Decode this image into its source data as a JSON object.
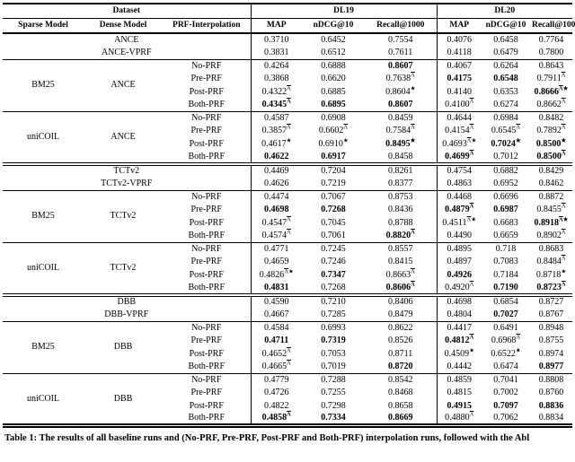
{
  "page": {
    "background": "#ffffff",
    "text_color": "#000000"
  },
  "table": {
    "markers": {
      "lambda": "Λ",
      "star": "★"
    },
    "header": {
      "group_row": [
        {
          "label": "Dataset",
          "span": 3
        },
        {
          "label": "DL19",
          "span": 3
        },
        {
          "label": "DL20",
          "span": 3
        }
      ],
      "columns": [
        "Sparse Model",
        "Dense Model",
        "PRF-Interpolation",
        "MAP",
        "nDCG@10",
        "Recall@1000",
        "MAP",
        "nDCG@10",
        "Recall@1000"
      ]
    },
    "sections": [
      {
        "baselines": [
          {
            "label": "ANCE",
            "cells": [
              "0.3710",
              "0.6452",
              "0.7554",
              "0.4076",
              "0.6458",
              "0.7764"
            ]
          },
          {
            "label": "ANCE-VPRF",
            "cells": [
              "0.3831",
              "0.6512",
              "0.7611",
              "0.4118",
              "0.6479",
              "0.7800"
            ]
          }
        ],
        "blocks": [
          {
            "sparse": "BM25",
            "dense": "ANCE",
            "rows": [
              {
                "prf": "No-PRF",
                "cells": [
                  "0.4264",
                  "0.6888",
                  {
                    "v": "0.8607",
                    "b": 1
                  },
                  "0.4067",
                  "0.6264",
                  "0.8643"
                ]
              },
              {
                "prf": "Pre-PRF",
                "cells": [
                  "0.3868",
                  "0.6620",
                  {
                    "v": "0.7638",
                    "m": "L"
                  },
                  {
                    "v": "0.4175",
                    "b": 1
                  },
                  {
                    "v": "0.6548",
                    "b": 1
                  },
                  {
                    "v": "0.7911",
                    "m": "L"
                  }
                ]
              },
              {
                "prf": "Post-PRF",
                "cells": [
                  {
                    "v": "0.4322",
                    "m": "L"
                  },
                  "0.6885",
                  {
                    "v": "0.8604",
                    "m": "S"
                  },
                  "0.4140",
                  "0.6353",
                  {
                    "v": "0.8666",
                    "m": "LS",
                    "b": 1
                  }
                ]
              },
              {
                "prf": "Both-PRF",
                "cells": [
                  {
                    "v": "0.4345",
                    "m": "L",
                    "b": 1
                  },
                  {
                    "v": "0.6895",
                    "b": 1
                  },
                  {
                    "v": "0.8607",
                    "b": 1
                  },
                  {
                    "v": "0.4100",
                    "m": "L"
                  },
                  "0.6274",
                  {
                    "v": "0.8662",
                    "m": "L"
                  }
                ]
              }
            ]
          },
          {
            "sparse": "uniCOIL",
            "dense": "ANCE",
            "rows": [
              {
                "prf": "No-PRF",
                "cells": [
                  "0.4587",
                  "0.6908",
                  "0.8459",
                  "0.4644",
                  "0.6984",
                  "0.8482"
                ]
              },
              {
                "prf": "Pre-PRF",
                "cells": [
                  {
                    "v": "0.3857",
                    "m": "L"
                  },
                  {
                    "v": "0.6602",
                    "m": "L"
                  },
                  {
                    "v": "0.7584",
                    "m": "L"
                  },
                  {
                    "v": "0.4154",
                    "m": "L"
                  },
                  {
                    "v": "0.6545",
                    "m": "L"
                  },
                  {
                    "v": "0.7892",
                    "m": "L"
                  }
                ]
              },
              {
                "prf": "Post-PRF",
                "cells": [
                  {
                    "v": "0.4617",
                    "m": "S"
                  },
                  {
                    "v": "0.6910",
                    "m": "S"
                  },
                  {
                    "v": "0.8495",
                    "m": "S",
                    "b": 1
                  },
                  {
                    "v": "0.4693",
                    "m": "LS"
                  },
                  {
                    "v": "0.7024",
                    "m": "S",
                    "b": 1
                  },
                  {
                    "v": "0.8500",
                    "m": "S",
                    "b": 1
                  }
                ]
              },
              {
                "prf": "Both-PRF",
                "cells": [
                  {
                    "v": "0.4622",
                    "b": 1
                  },
                  {
                    "v": "0.6917",
                    "b": 1
                  },
                  "0.8458",
                  {
                    "v": "0.4699",
                    "m": "L",
                    "b": 1
                  },
                  "0.7012",
                  {
                    "v": "0.8500",
                    "m": "L",
                    "b": 1
                  }
                ]
              }
            ]
          }
        ]
      },
      {
        "baselines": [
          {
            "label": "TCTv2",
            "cells": [
              "0.4469",
              "0.7204",
              "0.8261",
              "0.4754",
              "0.6882",
              "0.8429"
            ]
          },
          {
            "label": "TCTv2-VPRF",
            "cells": [
              "0.4626",
              "0.7219",
              "0.8377",
              "0.4863",
              "0.6952",
              "0.8462"
            ]
          }
        ],
        "blocks": [
          {
            "sparse": "BM25",
            "dense": "TCTv2",
            "rows": [
              {
                "prf": "No-PRF",
                "cells": [
                  "0.4474",
                  "0.7067",
                  "0.8753",
                  "0.4468",
                  "0.6696",
                  "0.8872"
                ]
              },
              {
                "prf": "Pre-PRF",
                "cells": [
                  {
                    "v": "0.4698",
                    "b": 1
                  },
                  {
                    "v": "0.7268",
                    "b": 1
                  },
                  "0.8436",
                  {
                    "v": "0.4879",
                    "m": "L",
                    "b": 1
                  },
                  {
                    "v": "0.6987",
                    "b": 1
                  },
                  {
                    "v": "0.8455",
                    "m": "L"
                  }
                ]
              },
              {
                "prf": "Post-PRF",
                "cells": [
                  {
                    "v": "0.4547",
                    "m": "L"
                  },
                  "0.7045",
                  "0.8788",
                  {
                    "v": "0.4511",
                    "m": "LS"
                  },
                  "0.6683",
                  {
                    "v": "0.8918",
                    "m": "LS",
                    "b": 1
                  }
                ]
              },
              {
                "prf": "Both-PRF",
                "cells": [
                  {
                    "v": "0.4574",
                    "m": "L"
                  },
                  "0.7061",
                  {
                    "v": "0.8820",
                    "m": "L",
                    "b": 1
                  },
                  "0.4490",
                  "0.6659",
                  {
                    "v": "0.8902",
                    "m": "L"
                  }
                ]
              }
            ]
          },
          {
            "sparse": "uniCOIL",
            "dense": "TCTv2",
            "rows": [
              {
                "prf": "No-PRF",
                "cells": [
                  "0.4771",
                  "0.7245",
                  "0.8557",
                  "0.4895",
                  "0.718",
                  "0.8683"
                ]
              },
              {
                "prf": "Pre-PRF",
                "cells": [
                  "0.4659",
                  "0.7246",
                  "0.8415",
                  "0.4897",
                  "0.7083",
                  {
                    "v": "0.8484",
                    "m": "L"
                  }
                ]
              },
              {
                "prf": "Post-PRF",
                "cells": [
                  {
                    "v": "0.4826",
                    "m": "LS"
                  },
                  {
                    "v": "0.7347",
                    "b": 1
                  },
                  {
                    "v": "0.8663",
                    "m": "L"
                  },
                  {
                    "v": "0.4926",
                    "b": 1
                  },
                  "0.7184",
                  {
                    "v": "0.8718",
                    "m": "S"
                  }
                ]
              },
              {
                "prf": "Both-PRF",
                "cells": [
                  {
                    "v": "0.4831",
                    "b": 1
                  },
                  "0.7268",
                  {
                    "v": "0.8606",
                    "m": "L",
                    "b": 1
                  },
                  {
                    "v": "0.4920",
                    "m": "L"
                  },
                  {
                    "v": "0.7190",
                    "b": 1
                  },
                  {
                    "v": "0.8723",
                    "m": "L",
                    "b": 1
                  }
                ]
              }
            ]
          }
        ]
      },
      {
        "baselines": [
          {
            "label": "DBB",
            "cells": [
              "0.4590",
              "0.7210",
              "0.8406",
              "0.4698",
              "0.6854",
              "0.8727"
            ]
          },
          {
            "label": "DBB-VPRF",
            "cells": [
              "0.4667",
              "0.7285",
              "0.8479",
              "0.4804",
              {
                "v": "0.7027",
                "b": 1
              },
              "0.8767"
            ]
          }
        ],
        "blocks": [
          {
            "sparse": "BM25",
            "dense": "DBB",
            "rows": [
              {
                "prf": "No-PRF",
                "cells": [
                  "0.4584",
                  "0.6993",
                  "0.8622",
                  "0.4417",
                  "0.6491",
                  "0.8948"
                ]
              },
              {
                "prf": "Pre-PRF",
                "cells": [
                  {
                    "v": "0.4711",
                    "b": 1
                  },
                  {
                    "v": "0.7319",
                    "b": 1
                  },
                  "0.8526",
                  {
                    "v": "0.4812",
                    "m": "L",
                    "b": 1
                  },
                  {
                    "v": "0.6968",
                    "m": "L"
                  },
                  "0.8755"
                ]
              },
              {
                "prf": "Post-PRF",
                "cells": [
                  {
                    "v": "0.4652",
                    "m": "L"
                  },
                  "0.7053",
                  "0.8711",
                  {
                    "v": "0.4509",
                    "m": "S"
                  },
                  {
                    "v": "0.6522",
                    "m": "S"
                  },
                  "0.8974"
                ]
              },
              {
                "prf": "Both-PRF",
                "cells": [
                  {
                    "v": "0.4665",
                    "m": "L"
                  },
                  "0.7019",
                  {
                    "v": "0.8720",
                    "b": 1
                  },
                  "0.4442",
                  "0.6474",
                  {
                    "v": "0.8977",
                    "b": 1
                  }
                ]
              }
            ]
          },
          {
            "sparse": "uniCOIL",
            "dense": "DBB",
            "rows": [
              {
                "prf": "No-PRF",
                "cells": [
                  "0.4779",
                  "0.7288",
                  "0.8542",
                  "0.4859",
                  "0.7041",
                  "0.8808"
                ]
              },
              {
                "prf": "Pre-PRF",
                "cells": [
                  "0.4726",
                  "0.7255",
                  "0.8468",
                  "0.4815",
                  "0.7002",
                  "0.8760"
                ]
              },
              {
                "prf": "Post-PRF",
                "cells": [
                  "0.4822",
                  "0.7298",
                  "0.8658",
                  {
                    "v": "0.4915",
                    "b": 1
                  },
                  {
                    "v": "0.7097",
                    "b": 1
                  },
                  {
                    "v": "0.8836",
                    "b": 1
                  }
                ]
              },
              {
                "prf": "Both-PRF",
                "cells": [
                  {
                    "v": "0.4858",
                    "m": "L",
                    "b": 1
                  },
                  {
                    "v": "0.7334",
                    "b": 1
                  },
                  {
                    "v": "0.8669",
                    "b": 1
                  },
                  {
                    "v": "0.4880",
                    "m": "L"
                  },
                  "0.7062",
                  "0.8834"
                ]
              }
            ]
          }
        ]
      }
    ]
  },
  "caption": {
    "text": "Table 1: The results of all baseline runs and (No-PRF, Pre-PRF, Post-PRF and Both-PRF) interpolation runs, followed with the Abl"
  }
}
